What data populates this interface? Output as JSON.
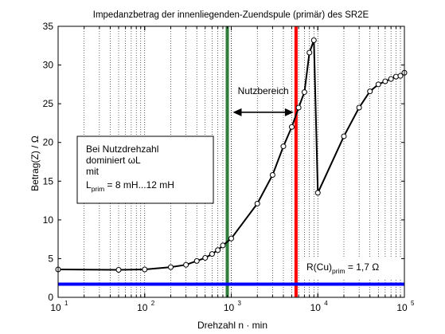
{
  "chart_data": {
    "type": "line",
    "title": "Impedanzbetrag der innenliegenden-Zuendspule (primär) des SR2E",
    "xlabel": "Drehzahl n · min",
    "ylabel": "Betrag(Z) / Ω",
    "xscale": "log",
    "xlim": [
      10,
      100000
    ],
    "ylim": [
      0,
      35
    ],
    "grid": "x-minor-dotted",
    "x_ticks": [
      {
        "base": "10",
        "exp": "1",
        "value": 10
      },
      {
        "base": "10",
        "exp": "2",
        "value": 100
      },
      {
        "base": "10",
        "exp": "3",
        "value": 1000
      },
      {
        "base": "10",
        "exp": "4",
        "value": 10000
      },
      {
        "base": "10",
        "exp": "5",
        "value": 100000
      }
    ],
    "y_ticks": [
      "0",
      "5",
      "10",
      "15",
      "20",
      "25",
      "30",
      "35"
    ],
    "series": [
      {
        "color": "#000000",
        "marker": "circle",
        "x": [
          10,
          50,
          100,
          200,
          300,
          400,
          500,
          600,
          700,
          800,
          1000,
          2000,
          3000,
          4000,
          5000,
          6000,
          7000,
          8000,
          9000,
          10000,
          20000,
          30000,
          40000,
          50000,
          60000,
          70000,
          80000,
          90000,
          100000
        ],
        "y": [
          3.6,
          3.55,
          3.6,
          3.9,
          4.2,
          4.7,
          5.1,
          5.6,
          6.1,
          6.7,
          7.6,
          12.1,
          15.8,
          19.5,
          22.0,
          24.5,
          26.5,
          31.6,
          33.2,
          13.5,
          20.8,
          24.5,
          26.6,
          27.5,
          27.9,
          28.2,
          28.5,
          28.6,
          29.0
        ]
      }
    ],
    "vlines": [
      {
        "x": 900,
        "color": "#2e7d3a"
      },
      {
        "x": 5600,
        "color": "#ff0000"
      }
    ],
    "hlines": [
      {
        "y": 1.7,
        "color": "#0000ff"
      }
    ],
    "range_arrow": {
      "x1": 1000,
      "x2": 5600,
      "y": 23.9,
      "label": "Nutzbereich"
    },
    "note_box": {
      "line1": "Bei Nutzdrehzahl",
      "line2": "dominiert ωL",
      "line3": "mit",
      "line4_main": "L",
      "line4_sub": "prim",
      "line4_rest": " = 8 mH...12 mH"
    },
    "r_label": {
      "main": "R(Cu)",
      "sub": "prim",
      "rest": " = 1,7 Ω"
    },
    "colors": {
      "curve": "#000000",
      "green": "#2e7d3a",
      "red": "#ff0000",
      "blue": "#0000ff",
      "grid": "#000000"
    }
  }
}
